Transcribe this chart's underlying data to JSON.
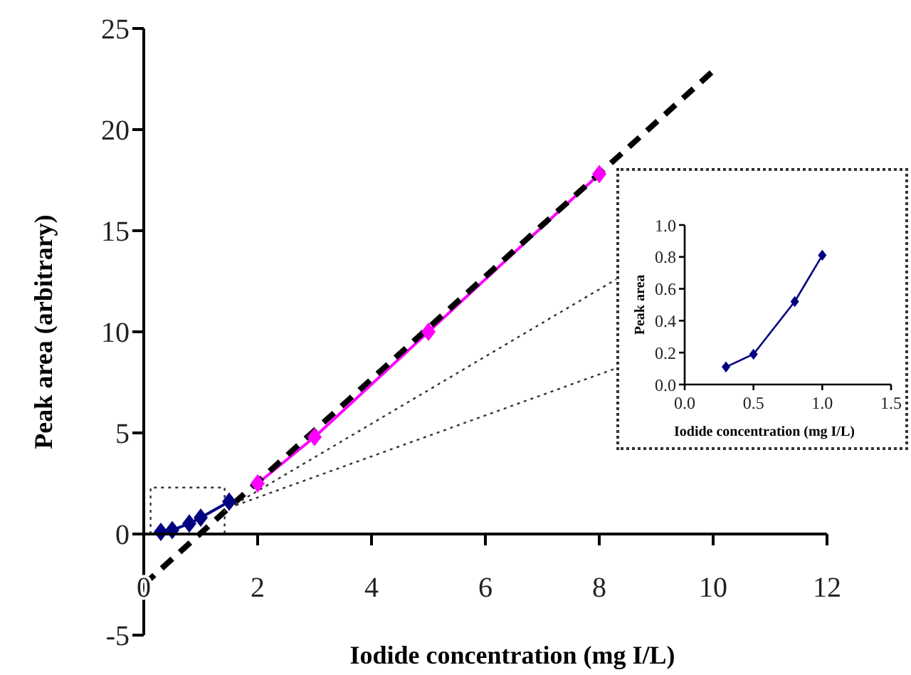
{
  "chart_data": [
    {
      "type": "line",
      "xlabel": "Iodide concentration (mg I/L)",
      "ylabel": "Peak area (arbitrary)",
      "xlim": [
        0,
        12
      ],
      "ylim": [
        -5,
        25
      ],
      "xticks": [
        0,
        2,
        4,
        6,
        8,
        10,
        12
      ],
      "yticks": [
        -5,
        0,
        5,
        10,
        15,
        20,
        25
      ],
      "marker": "diamond",
      "series": [
        {
          "color": "#000080",
          "x": [
            0.3,
            0.5,
            0.8,
            1.0,
            1.5
          ],
          "values": [
            0.11,
            0.19,
            0.52,
            0.81,
            1.6
          ]
        },
        {
          "color": "#ff00ff",
          "x": [
            2,
            3,
            5,
            8
          ],
          "values": [
            2.5,
            4.8,
            10,
            17.8
          ]
        },
        {
          "color": "#000000",
          "x": [
            0,
            10
          ],
          "values": [
            -2.5,
            22.9
          ],
          "line_style": "dashed",
          "marker": "none"
        },
        {
          "color": "#333333",
          "x": [
            1.5,
            8.3
          ],
          "values": [
            1.3,
            12.6
          ],
          "line_style": "dotted",
          "marker": "none"
        },
        {
          "color": "#333333",
          "x": [
            1.5,
            8.3
          ],
          "values": [
            1.3,
            8.2
          ],
          "line_style": "dotted",
          "marker": "none"
        },
        {
          "color": "#333333",
          "x": [
            0.12,
            0.12,
            1.42,
            1.42
          ],
          "values": [
            0,
            2.3,
            2.3,
            0
          ],
          "line_style": "dotted",
          "marker": "none"
        }
      ]
    },
    {
      "type": "line",
      "xlabel": "Iodide concentration (mg I/L)",
      "ylabel": "Peak area",
      "xlim": [
        0,
        1.5
      ],
      "ylim": [
        0,
        1
      ],
      "xticks": [
        {
          "value": 0,
          "label": "0.0"
        },
        {
          "value": 0.5,
          "label": "0.5"
        },
        {
          "value": 1,
          "label": "1.0"
        },
        {
          "value": 1.5,
          "label": "1.5"
        }
      ],
      "yticks": [
        {
          "value": 0,
          "label": "0.0"
        },
        {
          "value": 0.2,
          "label": "0.2"
        },
        {
          "value": 0.4,
          "label": "0.4"
        },
        {
          "value": 0.6,
          "label": "0.6"
        },
        {
          "value": 0.8,
          "label": "0.8"
        },
        {
          "value": 1,
          "label": "1.0"
        }
      ],
      "marker": "diamond",
      "series": [
        {
          "color": "#000080",
          "x": [
            0.3,
            0.5,
            0.8,
            1.0
          ],
          "values": [
            0.11,
            0.19,
            0.52,
            0.81
          ]
        }
      ]
    }
  ]
}
